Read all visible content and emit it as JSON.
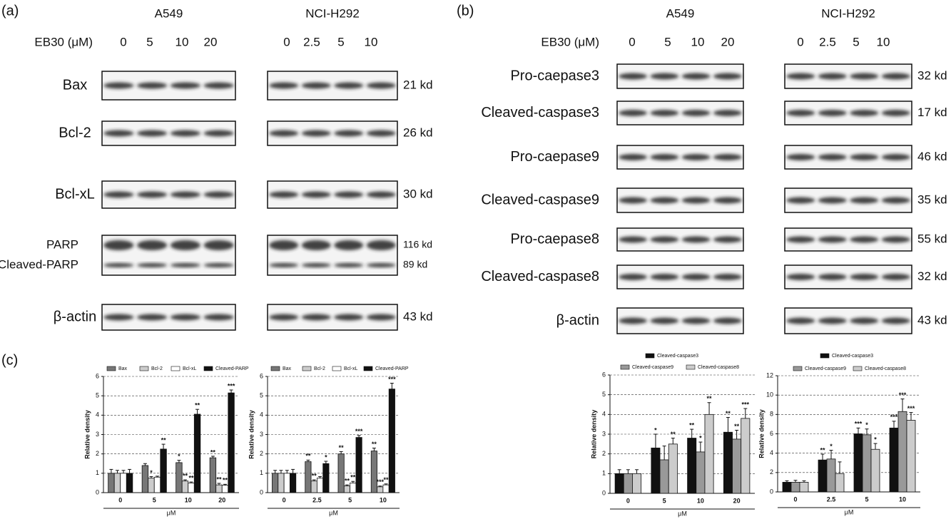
{
  "blots": [
    {
      "label": "(a)",
      "treatment": "EB30 (μM)",
      "cell_lines": [
        {
          "name": "A549",
          "doses": [
            "0",
            "5",
            "10",
            "20"
          ]
        },
        {
          "name": "NCI-H292",
          "doses": [
            "0",
            "2.5",
            "5",
            "10"
          ]
        }
      ],
      "rows": [
        {
          "proteins": [
            "Bax"
          ],
          "sizes": [
            "21 kd"
          ]
        },
        {
          "proteins": [
            "Bcl-2"
          ],
          "sizes": [
            "26 kd"
          ]
        },
        {
          "proteins": [
            "Bcl-xL"
          ],
          "sizes": [
            "30 kd"
          ]
        },
        {
          "proteins": [
            "PARP",
            "Cleaved-PARP"
          ],
          "sizes": [
            "116 kd",
            "89 kd"
          ]
        },
        {
          "proteins": [
            "β-actin"
          ],
          "sizes": [
            "43 kd"
          ]
        }
      ]
    },
    {
      "label": "(b)",
      "treatment": "EB30 (μM)",
      "cell_lines": [
        {
          "name": "A549",
          "doses": [
            "0",
            "5",
            "10",
            "20"
          ]
        },
        {
          "name": "NCI-H292",
          "doses": [
            "0",
            "2.5",
            "5",
            "10"
          ]
        }
      ],
      "rows": [
        {
          "proteins": [
            "Pro-caepase3"
          ],
          "sizes": [
            "32 kd"
          ]
        },
        {
          "proteins": [
            "Cleaved-caspase3"
          ],
          "sizes": [
            "17 kd"
          ]
        },
        {
          "proteins": [
            "Pro-caepase9"
          ],
          "sizes": [
            "46 kd"
          ]
        },
        {
          "proteins": [
            "Cleaved-caspase9"
          ],
          "sizes": [
            "35 kd"
          ]
        },
        {
          "proteins": [
            "Pro-caepase8"
          ],
          "sizes": [
            "55 kd"
          ]
        },
        {
          "proteins": [
            "Cleaved-caspase8"
          ],
          "sizes": [
            "32 kd"
          ]
        },
        {
          "proteins": [
            "β-actin"
          ],
          "sizes": [
            "43 kd"
          ]
        }
      ]
    }
  ],
  "chart_label": "(c)",
  "chart_data": [
    {
      "type": "bar",
      "x_label": "μM",
      "y_label": "Relative density",
      "categories": [
        "0",
        "5",
        "10",
        "20"
      ],
      "ylim": [
        0,
        6
      ],
      "yticks": [
        0,
        1,
        2,
        3,
        4,
        5,
        6
      ],
      "grid": true,
      "series": [
        {
          "name": "Bax",
          "color": "#777777",
          "values": [
            1,
            1.4,
            1.55,
            1.8
          ],
          "errors": [
            0.2,
            0.1,
            0.12,
            0.08
          ],
          "stars": [
            null,
            null,
            "*",
            "**"
          ]
        },
        {
          "name": "Bcl-2",
          "color": "#cccccc",
          "values": [
            1,
            0.75,
            0.6,
            0.4
          ],
          "errors": [
            0.15,
            0.08,
            0.06,
            0.08
          ],
          "stars": [
            null,
            "*",
            "**",
            "**"
          ]
        },
        {
          "name": "Bcl-xL",
          "color": "#ffffff",
          "values": [
            1,
            0.8,
            0.5,
            0.38
          ],
          "errors": [
            0.15,
            0.05,
            0.05,
            0.05
          ],
          "stars": [
            null,
            null,
            "**",
            "**"
          ]
        },
        {
          "name": "Cleaved-PARP",
          "color": "#111111",
          "values": [
            1,
            2.25,
            4.05,
            5.15
          ],
          "errors": [
            0.2,
            0.25,
            0.25,
            0.15
          ],
          "stars": [
            null,
            "**",
            "**",
            "***"
          ]
        }
      ]
    },
    {
      "type": "bar",
      "x_label": "μM",
      "y_label": "Relative density",
      "categories": [
        "0",
        "2.5",
        "5",
        "10"
      ],
      "ylim": [
        0,
        6
      ],
      "yticks": [
        0,
        1,
        2,
        3,
        4,
        5,
        6
      ],
      "grid": true,
      "series": [
        {
          "name": "Bax",
          "color": "#777777",
          "values": [
            1,
            1.6,
            2.0,
            2.15
          ],
          "errors": [
            0.15,
            0.08,
            0.12,
            0.15
          ],
          "stars": [
            null,
            "**",
            "**",
            "**"
          ]
        },
        {
          "name": "Bcl-2",
          "color": "#cccccc",
          "values": [
            1,
            0.6,
            0.35,
            0.3
          ],
          "errors": [
            0.15,
            0.06,
            0.05,
            0.04
          ],
          "stars": [
            null,
            "**",
            "**",
            "***"
          ]
        },
        {
          "name": "Bcl-xL",
          "color": "#ffffff",
          "values": [
            1,
            0.75,
            0.5,
            0.4
          ],
          "errors": [
            0.15,
            0.08,
            0.08,
            0.05
          ],
          "stars": [
            null,
            null,
            "**",
            "**"
          ]
        },
        {
          "name": "Cleaved-PARP",
          "color": "#111111",
          "values": [
            1,
            1.5,
            2.85,
            5.35
          ],
          "errors": [
            0.2,
            0.12,
            0.1,
            0.3
          ],
          "stars": [
            null,
            "*",
            "***",
            "***"
          ]
        }
      ]
    },
    {
      "type": "bar",
      "x_label": "μM",
      "y_label": "Relative density",
      "categories": [
        "0",
        "5",
        "10",
        "20"
      ],
      "ylim": [
        0,
        6
      ],
      "yticks": [
        0,
        1,
        2,
        3,
        4,
        5,
        6
      ],
      "grid": true,
      "series": [
        {
          "name": "Cleaved-caspase3",
          "color": "#111111",
          "values": [
            1,
            2.3,
            2.8,
            3.1
          ],
          "errors": [
            0.2,
            0.7,
            0.45,
            0.75
          ],
          "stars": [
            null,
            "*",
            "**",
            "**"
          ]
        },
        {
          "name": "Cleaved-caspase9",
          "color": "#999999",
          "values": [
            1,
            1.7,
            2.1,
            2.75
          ],
          "errors": [
            0.2,
            0.7,
            0.5,
            0.45
          ],
          "stars": [
            null,
            null,
            "*",
            "**"
          ]
        },
        {
          "name": "Cleaved-caspase8",
          "color": "#cccccc",
          "values": [
            1,
            2.5,
            4.0,
            3.8
          ],
          "errors": [
            0.2,
            0.3,
            0.6,
            0.5
          ],
          "stars": [
            null,
            "**",
            "**",
            "***"
          ]
        }
      ]
    },
    {
      "type": "bar",
      "x_label": "μM",
      "y_label": "Relative density",
      "categories": [
        "0",
        "2.5",
        "5",
        "10"
      ],
      "ylim": [
        0,
        12
      ],
      "yticks": [
        0,
        2,
        4,
        6,
        8,
        10,
        12
      ],
      "grid": true,
      "series": [
        {
          "name": "Cleaved-caspase3",
          "color": "#111111",
          "values": [
            1,
            3.3,
            6,
            6.6
          ],
          "errors": [
            0.15,
            0.6,
            0.6,
            0.7
          ],
          "stars": [
            null,
            "**",
            "***",
            "***"
          ]
        },
        {
          "name": "Cleaved-caspase9",
          "color": "#999999",
          "values": [
            1,
            3.4,
            5.9,
            8.3
          ],
          "errors": [
            0.2,
            0.9,
            0.6,
            1.3
          ],
          "stars": [
            null,
            "*",
            "*",
            "***"
          ]
        },
        {
          "name": "Cleaved-caspase8",
          "color": "#cccccc",
          "values": [
            1,
            1.9,
            4.4,
            7.4
          ],
          "errors": [
            0.15,
            1.2,
            0.6,
            0.8
          ],
          "stars": [
            null,
            null,
            "*",
            "***"
          ]
        }
      ]
    }
  ]
}
